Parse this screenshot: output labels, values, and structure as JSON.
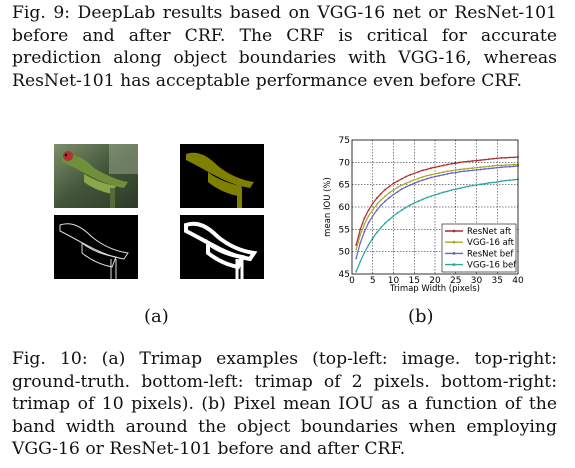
{
  "fig9_caption": "Fig. 9: DeepLab results based on VGG-16 net or ResNet-101 before and after CRF. The CRF is critical for accurate prediction along object boundaries with VGG-16, whereas ResNet-101 has acceptable performance even before CRF.",
  "panel_a_label": "(a)",
  "panel_b_label": "(b)",
  "fig10_caption": "Fig. 10: (a) Trimap examples (top-left: image. top-right: ground-truth. bottom-left: trimap of 2 pixels. bottom-right: trimap of 10 pixels). (b) Pixel mean IOU as a function of the band width around the object boundaries when employing VGG-16 or ResNet-101 before and after CRF.",
  "colors": {
    "resnet_aft": "#b22a2a",
    "vgg_aft": "#a8a828",
    "resnet_bef": "#6464c8",
    "vgg_bef": "#2aa5a0"
  },
  "chart_data": {
    "type": "line",
    "xlabel": "Trimap Width (pixels)",
    "ylabel": "mean IOU (%)",
    "xlim": [
      0,
      40
    ],
    "ylim": [
      45,
      75
    ],
    "xticks": [
      "0",
      "5",
      "10",
      "15",
      "20",
      "25",
      "30",
      "35",
      "40"
    ],
    "yticks": [
      "45",
      "50",
      "55",
      "60",
      "65",
      "70",
      "75"
    ],
    "grid": true,
    "legend_position": "bottom-right",
    "x": [
      1,
      2,
      3,
      4,
      5,
      6,
      7,
      8,
      9,
      10,
      11,
      12,
      13,
      14,
      15,
      16,
      17,
      18,
      19,
      20,
      21,
      22,
      23,
      24,
      25,
      26,
      27,
      28,
      29,
      30,
      31,
      32,
      33,
      34,
      35,
      36,
      37,
      38,
      39,
      40
    ],
    "series": [
      {
        "name": "ResNet aft",
        "color": "#b22a2a",
        "values": [
          51.5,
          55.0,
          57.5,
          59.3,
          60.8,
          62.0,
          63.0,
          63.9,
          64.6,
          65.3,
          65.8,
          66.3,
          66.8,
          67.2,
          67.5,
          67.9,
          68.2,
          68.4,
          68.7,
          68.9,
          69.1,
          69.3,
          69.5,
          69.7,
          69.8,
          70.0,
          70.1,
          70.2,
          70.3,
          70.4,
          70.5,
          70.6,
          70.7,
          70.8,
          70.9,
          71.0,
          71.0,
          71.1,
          71.1,
          71.2
        ]
      },
      {
        "name": "VGG-16 aft",
        "color": "#a8a828",
        "values": [
          50.5,
          53.8,
          56.2,
          58.0,
          59.4,
          60.6,
          61.6,
          62.4,
          63.2,
          63.8,
          64.4,
          64.9,
          65.3,
          65.7,
          66.1,
          66.4,
          66.7,
          67.0,
          67.2,
          67.4,
          67.6,
          67.8,
          68.0,
          68.1,
          68.3,
          68.4,
          68.5,
          68.6,
          68.7,
          68.8,
          68.9,
          69.0,
          69.1,
          69.2,
          69.3,
          69.3,
          69.4,
          69.4,
          69.5,
          69.5
        ]
      },
      {
        "name": "ResNet bef",
        "color": "#6464c8",
        "values": [
          48.5,
          52.0,
          54.5,
          56.5,
          58.0,
          59.3,
          60.4,
          61.3,
          62.1,
          62.8,
          63.4,
          64.0,
          64.5,
          64.9,
          65.3,
          65.7,
          66.0,
          66.3,
          66.6,
          66.8,
          67.0,
          67.2,
          67.4,
          67.6,
          67.7,
          67.9,
          68.0,
          68.1,
          68.2,
          68.3,
          68.4,
          68.5,
          68.6,
          68.7,
          68.8,
          68.9,
          69.0,
          69.0,
          69.1,
          69.2
        ]
      },
      {
        "name": "VGG-16 bef",
        "color": "#2aa5a0",
        "values": [
          45.5,
          47.8,
          49.8,
          51.5,
          53.0,
          54.3,
          55.4,
          56.4,
          57.2,
          58.0,
          58.7,
          59.3,
          59.9,
          60.4,
          60.9,
          61.3,
          61.7,
          62.1,
          62.4,
          62.7,
          63.0,
          63.3,
          63.5,
          63.8,
          64.0,
          64.2,
          64.4,
          64.6,
          64.8,
          64.9,
          65.1,
          65.2,
          65.4,
          65.5,
          65.6,
          65.8,
          65.9,
          66.0,
          66.1,
          66.2
        ]
      }
    ]
  }
}
